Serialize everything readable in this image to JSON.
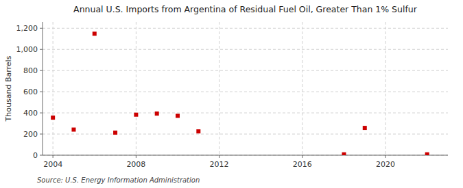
{
  "chart_data": {
    "type": "scatter",
    "title": "Annual U.S. Imports from Argentina of Residual Fuel Oil, Greater Than 1% Sulfur",
    "ylabel": "Thousand Barrels",
    "source": "Source: U.S. Energy Information Administration",
    "x": [
      2004,
      2005,
      2006,
      2007,
      2008,
      2009,
      2010,
      2011,
      2018,
      2019,
      2022
    ],
    "values": [
      355,
      242,
      1148,
      213,
      383,
      393,
      372,
      225,
      8,
      258,
      8
    ],
    "color": "#cc0000",
    "marker": "square",
    "xlim": [
      2003.5,
      2023
    ],
    "ylim": [
      0,
      1260
    ],
    "xticks": [
      2004,
      2008,
      2012,
      2016,
      2020
    ],
    "yticks": [
      0,
      200,
      400,
      600,
      800,
      {
        "value": 1000,
        "label": "1,000"
      },
      {
        "value": 1200,
        "label": "1,200"
      }
    ],
    "grid": true
  }
}
